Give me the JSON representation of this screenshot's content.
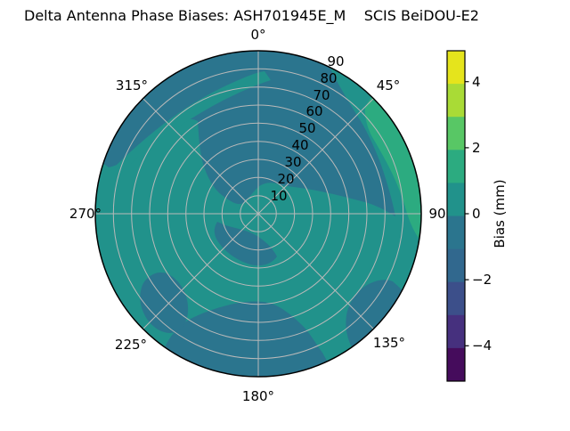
{
  "title": "Delta Antenna Phase Biases: ASH701945E_M    SCIS BeiDOU-E2",
  "polar": {
    "angular_tick_labels": [
      "0°",
      "45°",
      "90",
      "135°",
      "180°",
      "225°",
      "270°",
      "315°"
    ],
    "radial_tick_labels": [
      "10",
      "20",
      "30",
      "40",
      "50",
      "60",
      "70",
      "80",
      "90"
    ]
  },
  "colorbar": {
    "label": "Bias (mm)",
    "tick_labels": [
      "4",
      "2",
      "0",
      "−2",
      "−4"
    ],
    "range": [
      -5,
      5
    ],
    "band_colors_top_to_bottom": [
      "#e5e41c",
      "#a9db36",
      "#58c765",
      "#2cab80",
      "#21928b",
      "#2b758e",
      "#31688e",
      "#3c4f8a",
      "#46307e",
      "#450c5c"
    ]
  },
  "colors": {
    "background": "#ffffff",
    "base_band": "#21928b",
    "dark_band": "#2b758e",
    "bright_band": "#2cab80",
    "grid": "#b9b9b9",
    "rim": "#000000",
    "text": "#000000"
  },
  "chart_data": {
    "type": "filled_contour_polar",
    "title": "Delta Antenna Phase Biases: ASH701945E_M    SCIS BeiDOU-E2",
    "colormap": "viridis",
    "value_units": "mm",
    "colorbar_label": "Bias (mm)",
    "levels": [
      -5,
      -4,
      -3,
      -2,
      -1,
      0,
      1,
      2,
      3,
      4,
      5
    ],
    "colorbar_tick_values": [
      4,
      2,
      0,
      -2,
      -4
    ],
    "angular_ticks_deg": [
      0,
      45,
      90,
      135,
      180,
      225,
      270,
      315
    ],
    "radial_ticks": [
      10,
      20,
      30,
      40,
      50,
      60,
      70,
      80,
      90
    ],
    "radial_axis_note": "radial rings labeled 10-90 outward from center along ~22.5 deg ray",
    "regions": [
      {
        "band": [
          0,
          1
        ],
        "color": "#21928b",
        "approx_location": "base field covering most of the disk"
      },
      {
        "band": [
          -1,
          0
        ],
        "color": "#2b758e",
        "approx_location": "north cap from rim az 288-26 deg reaching inward to ring ~10 just north of center, with a tongue extending east to az ~90 deg at ring ~75"
      },
      {
        "band": [
          0,
          1
        ],
        "color": "#21928b",
        "approx_location": "narrow green stripe splitting the NW dark cap, from az ~295 deg ring ~80 slanting to az ~0 deg ring ~78"
      },
      {
        "band": [
          0,
          1
        ],
        "color": "#21928b",
        "approx_location": "green wedge at NE rim az 26-44 deg"
      },
      {
        "band": [
          1,
          2
        ],
        "color": "#2cab80",
        "approx_location": "bright arc hugging east rim from az 44 to 99 deg, rings ~77-90"
      },
      {
        "band": [
          -1,
          0
        ],
        "color": "#2b758e",
        "approx_location": "crescent wrapping south of center, az ~250-160 deg, rings ~10-28"
      },
      {
        "band": [
          -1,
          0
        ],
        "color": "#2b758e",
        "approx_location": "oval blob near az 225 deg, rings ~60-85"
      },
      {
        "band": [
          -1,
          0
        ],
        "color": "#2b758e",
        "approx_location": "south rim region az ~155-215 deg extending inward to ring ~48"
      },
      {
        "band": [
          -1,
          0
        ],
        "color": "#2b758e",
        "approx_location": "SE rim blob az ~118-145 deg, rings ~70-90"
      }
    ]
  }
}
